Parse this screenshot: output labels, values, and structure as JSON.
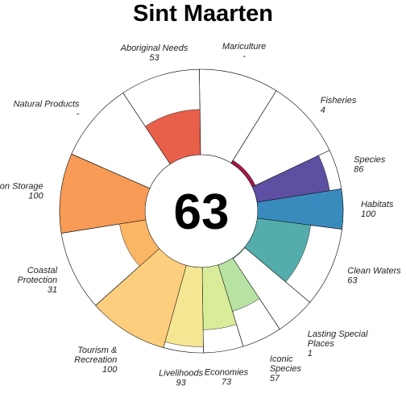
{
  "chart_data": {
    "type": "rose",
    "title": "Sint Maarten",
    "overall_score": "63",
    "max_value": 100,
    "goals": [
      {
        "label": [
          "Carbon Storage"
        ],
        "value": 100,
        "value_text": "100",
        "weight": 1.0,
        "color": "#F79B56"
      },
      {
        "label": [
          "Natural Products"
        ],
        "value": null,
        "value_text": "-",
        "weight": 1.0,
        "color": "#F4D0A0"
      },
      {
        "label": [
          "Aboriginal Needs"
        ],
        "value": 53,
        "value_text": "53",
        "weight": 1.0,
        "color": "#E8604A"
      },
      {
        "label": [
          "Mariculture"
        ],
        "value": null,
        "value_text": "-",
        "weight": 1.0,
        "color": "#C13C4A"
      },
      {
        "label": [
          "Fisheries"
        ],
        "value": 4,
        "value_text": "4",
        "weight": 1.0,
        "color": "#A3164A"
      },
      {
        "label": [
          "Species"
        ],
        "value": 86,
        "value_text": "86",
        "weight": 0.5,
        "color": "#5E4FA2"
      },
      {
        "label": [
          "Habitats"
        ],
        "value": 100,
        "value_text": "100",
        "weight": 0.5,
        "color": "#3A8BBD"
      },
      {
        "label": [
          "Clean Waters"
        ],
        "value": 63,
        "value_text": "63",
        "weight": 1.0,
        "color": "#55ADAB"
      },
      {
        "label": [
          "Lasting Special",
          "Places"
        ],
        "value": 1,
        "value_text": "1",
        "weight": 0.5,
        "color": "#8ED0A3"
      },
      {
        "label": [
          "Iconic",
          "Species"
        ],
        "value": 57,
        "value_text": "57",
        "weight": 0.5,
        "color": "#B7E2A4"
      },
      {
        "label": [
          "Economies"
        ],
        "value": 73,
        "value_text": "73",
        "weight": 0.5,
        "color": "#D8EC9A"
      },
      {
        "label": [
          "Livelihoods"
        ],
        "value": 93,
        "value_text": "93",
        "weight": 0.5,
        "color": "#F5E693"
      },
      {
        "label": [
          "Tourism &",
          "Recreation"
        ],
        "value": 100,
        "value_text": "100",
        "weight": 1.0,
        "color": "#FDCE7E"
      },
      {
        "label": [
          "Coastal",
          "Protection"
        ],
        "value": 31,
        "value_text": "31",
        "weight": 1.0,
        "color": "#FAB565"
      }
    ]
  }
}
